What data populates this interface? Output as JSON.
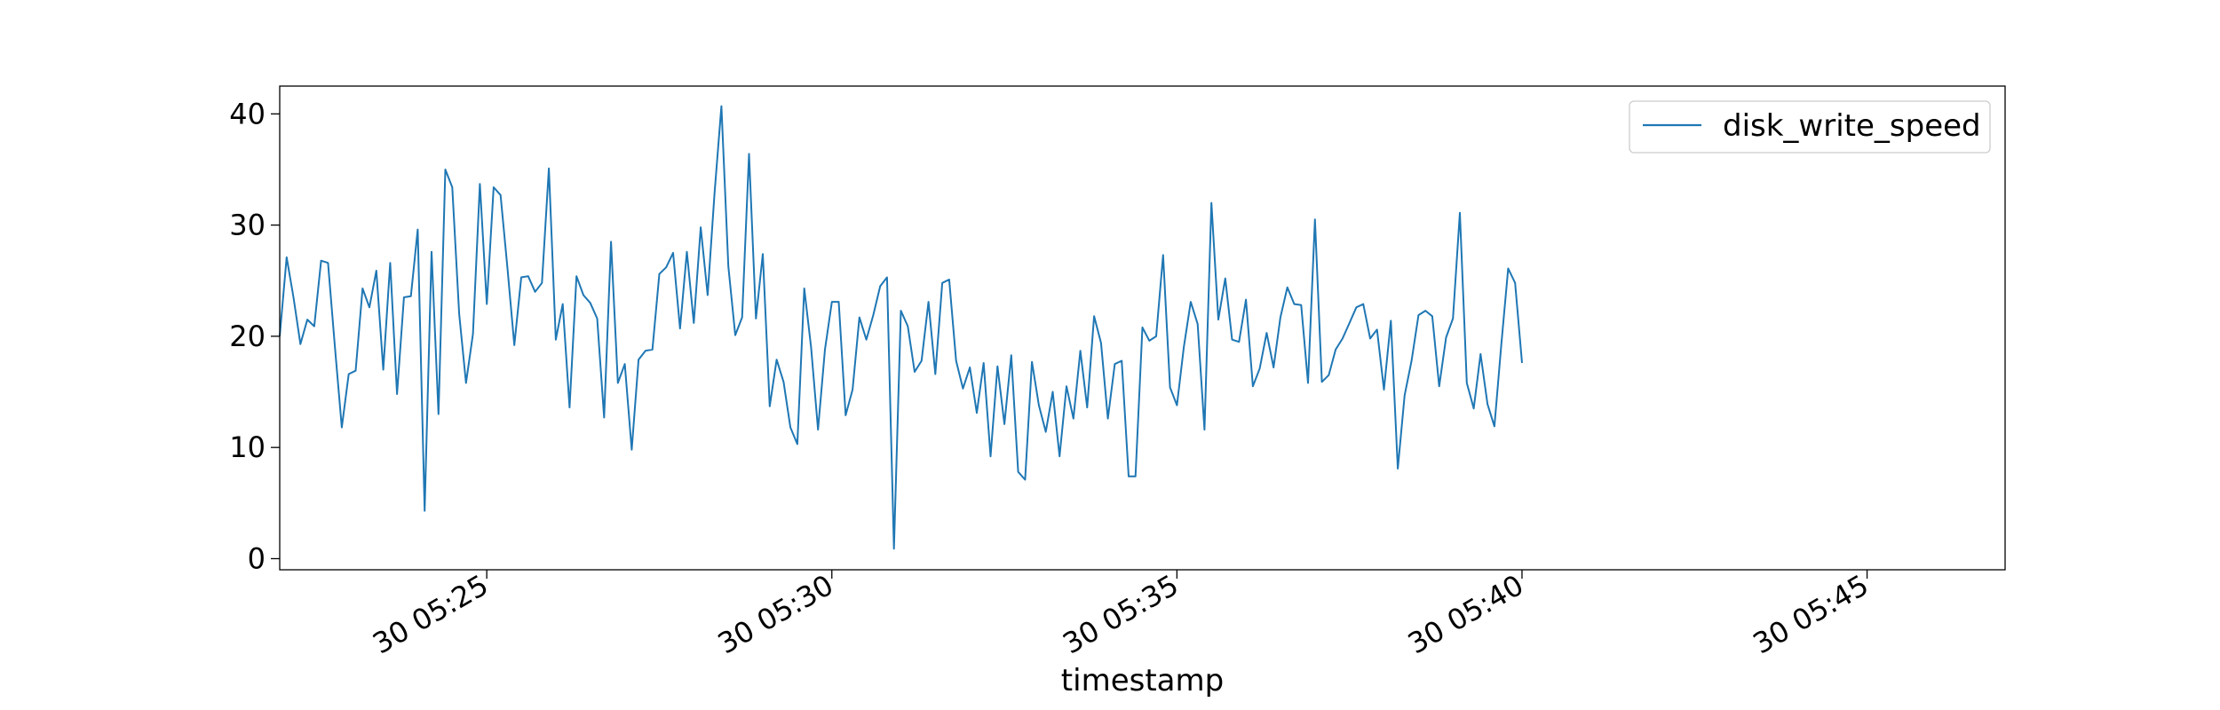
{
  "chart_data": {
    "type": "line",
    "title": "",
    "xlabel": "timestamp",
    "ylabel": "",
    "x_start": "05:22:00",
    "x_step_seconds": 6,
    "xlim": [
      "05:22:00",
      "05:47:00"
    ],
    "ylim": [
      -1,
      42.5
    ],
    "yticks": [
      0,
      10,
      20,
      30,
      40
    ],
    "xticks": [
      {
        "time": "05:25:00",
        "label": "30 05:25"
      },
      {
        "time": "05:30:00",
        "label": "30 05:30"
      },
      {
        "time": "05:35:00",
        "label": "30 05:35"
      },
      {
        "time": "05:40:00",
        "label": "30 05:40"
      },
      {
        "time": "05:45:00",
        "label": "30 05:45"
      }
    ],
    "grid": false,
    "legend_position": "top-right",
    "colors": {
      "series": "#1f77b4",
      "axes": "#000000"
    },
    "series": [
      {
        "name": "disk_write_speed",
        "values": [
          20.0,
          27.1,
          23.5,
          19.3,
          21.5,
          20.9,
          26.8,
          26.6,
          19.0,
          11.8,
          16.6,
          16.9,
          24.3,
          22.6,
          25.9,
          17.0,
          26.6,
          14.8,
          23.5,
          23.6,
          29.6,
          4.3,
          27.6,
          13.0,
          35.0,
          33.4,
          22.0,
          15.8,
          20.2,
          33.7,
          22.9,
          33.4,
          32.7,
          26.1,
          19.2,
          25.3,
          25.4,
          24.0,
          24.8,
          35.1,
          19.7,
          22.9,
          13.6,
          25.4,
          23.7,
          23.0,
          21.6,
          12.7,
          28.5,
          15.8,
          17.5,
          9.8,
          17.9,
          18.7,
          18.8,
          25.6,
          26.2,
          27.5,
          20.7,
          27.6,
          21.2,
          29.8,
          23.7,
          32.8,
          40.7,
          26.3,
          20.1,
          21.7,
          36.4,
          21.6,
          27.4,
          13.7,
          17.9,
          15.9,
          11.8,
          10.3,
          24.3,
          19.0,
          11.6,
          18.8,
          23.1,
          23.1,
          12.9,
          15.2,
          21.7,
          19.7,
          21.9,
          24.5,
          25.3,
          0.9,
          22.3,
          20.9,
          16.8,
          17.8,
          23.1,
          16.6,
          24.8,
          25.1,
          17.8,
          15.3,
          17.2,
          13.1,
          17.6,
          9.2,
          17.3,
          12.1,
          18.3,
          7.8,
          7.1,
          17.7,
          13.8,
          11.4,
          15.0,
          9.2,
          15.5,
          12.6,
          18.7,
          13.6,
          21.8,
          19.4,
          12.6,
          17.5,
          17.8,
          7.4,
          7.4,
          20.8,
          19.6,
          20.0,
          27.3,
          15.4,
          13.8,
          19.0,
          23.1,
          21.1,
          11.6,
          32.0,
          21.5,
          25.2,
          19.7,
          19.5,
          23.3,
          15.5,
          17.1,
          20.3,
          17.2,
          21.7,
          24.4,
          22.9,
          22.8,
          15.8,
          30.5,
          15.9,
          16.5,
          18.8,
          19.8,
          21.2,
          22.6,
          22.9,
          19.8,
          20.6,
          15.2,
          21.4,
          8.1,
          14.7,
          17.8,
          21.9,
          22.3,
          21.8,
          15.5,
          19.9,
          21.6,
          31.1,
          15.8,
          13.5,
          18.4,
          13.9,
          11.9,
          19.2,
          26.1,
          24.8,
          17.6
        ]
      }
    ]
  }
}
